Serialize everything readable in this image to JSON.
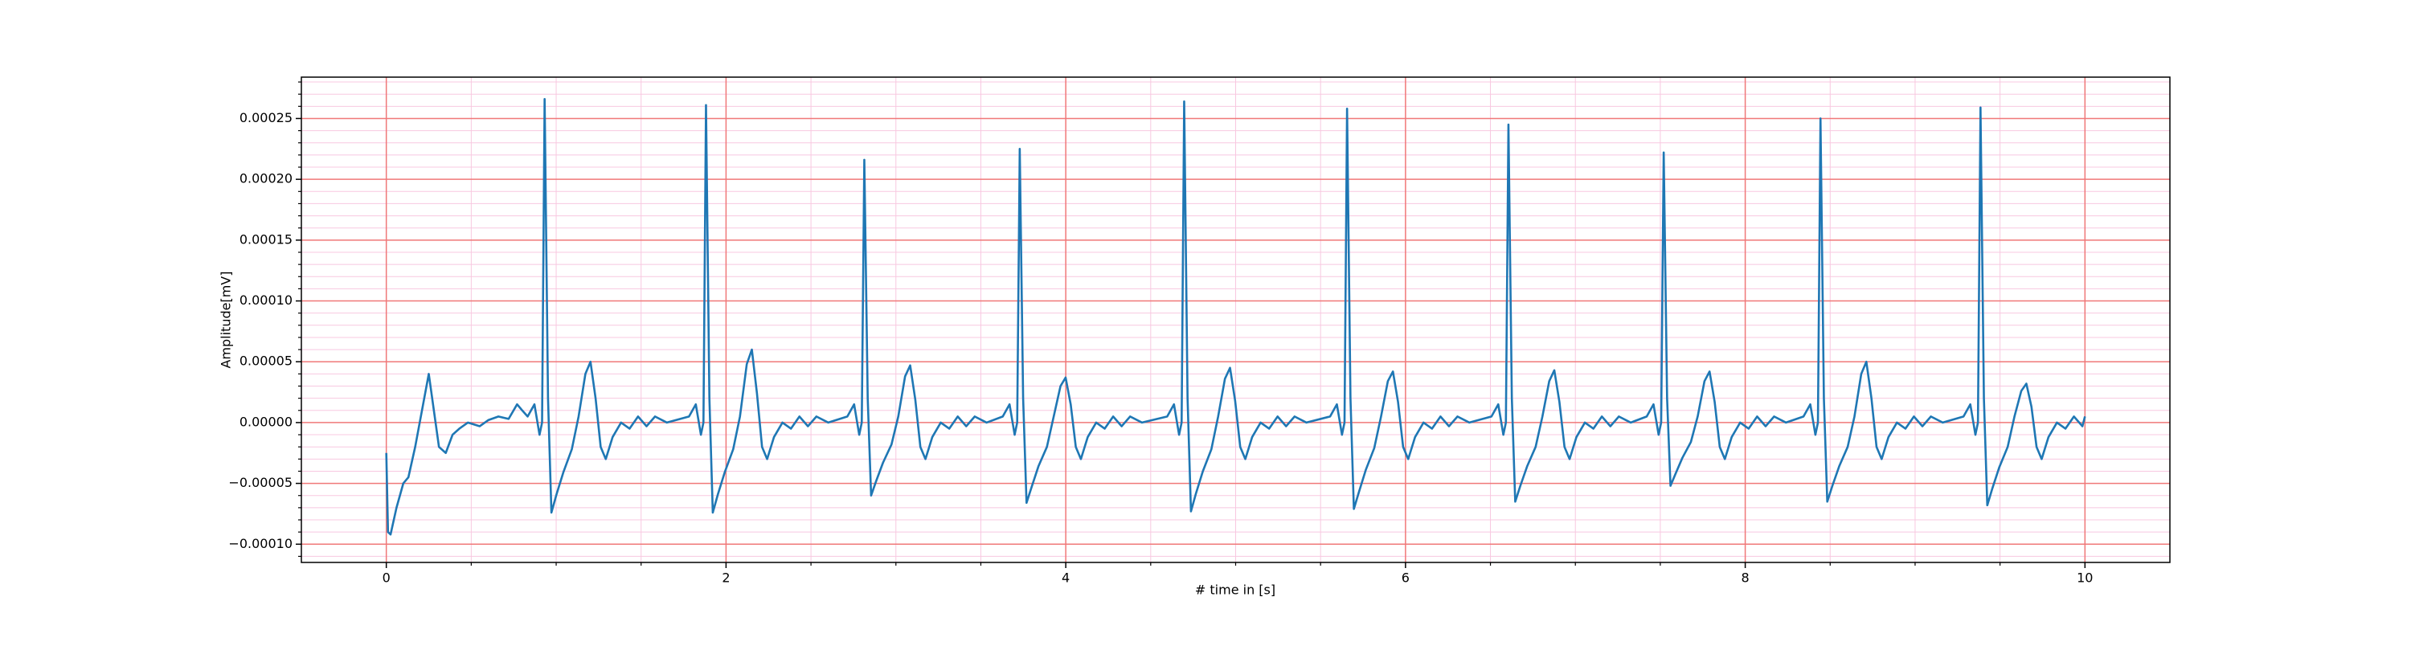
{
  "chart_data": {
    "type": "line",
    "xlabel": "# time in [s]",
    "ylabel": "Amplitude[mV]",
    "xlim": [
      -0.5,
      10.5
    ],
    "ylim": [
      -0.000115,
      0.000284
    ],
    "xticks": [
      0,
      2,
      4,
      6,
      8,
      10
    ],
    "yticks": [
      {
        "value": -0.0001,
        "label": "−0.00010"
      },
      {
        "value": -5e-05,
        "label": "−0.00005"
      },
      {
        "value": 0,
        "label": "0.00000"
      },
      {
        "value": 5e-05,
        "label": "0.00005"
      },
      {
        "value": 0.0001,
        "label": "0.00010"
      },
      {
        "value": 0.00015,
        "label": "0.00015"
      },
      {
        "value": 0.0002,
        "label": "0.00020"
      },
      {
        "value": 0.00025,
        "label": "0.00025"
      }
    ],
    "xminorticks": [
      0.5,
      1,
      1.5,
      2.5,
      3,
      3.5,
      4.5,
      5,
      5.5,
      6.5,
      7,
      7.5,
      8.5,
      9,
      9.5
    ],
    "yminorticks": [
      -0.00011,
      -9e-05,
      -8e-05,
      -7e-05,
      -6e-05,
      -4e-05,
      -3e-05,
      -2e-05,
      -1e-05,
      1e-05,
      2e-05,
      3e-05,
      4e-05,
      6e-05,
      7e-05,
      8e-05,
      9e-05,
      0.00011,
      0.00012,
      0.00013,
      0.00014,
      0.00016,
      0.00017,
      0.00018,
      0.00019,
      0.00021,
      0.00022,
      0.00023,
      0.00024,
      0.00026,
      0.00027,
      0.00028
    ],
    "grid": true,
    "major_grid_color": "#f07878",
    "minor_grid_color": "#f8c8e0",
    "series": [
      {
        "color": "#1f77b4",
        "x": [
          0,
          0.01,
          0.025,
          0.06,
          0.1,
          0.13,
          0.17,
          0.21,
          0.25,
          0.28,
          0.31,
          0.35,
          0.39,
          0.43,
          0.48,
          0.55,
          0.6,
          0.66,
          0.72,
          0.77,
          0.8,
          0.832,
          0.872,
          0.902,
          0.917,
          0.932,
          0.952,
          0.972,
          1.002,
          1.042,
          1.092,
          1.132,
          1.172,
          1.202,
          1.232,
          1.262,
          1.292,
          1.332,
          1.382,
          1.432,
          1.482,
          1.532,
          1.582,
          1.652,
          1.782,
          1.822,
          1.852,
          1.867,
          1.882,
          1.902,
          1.922,
          1.952,
          1.992,
          2.042,
          2.082,
          2.122,
          2.152,
          2.182,
          2.212,
          2.242,
          2.282,
          2.332,
          2.382,
          2.432,
          2.482,
          2.532,
          2.602,
          2.714,
          2.754,
          2.784,
          2.799,
          2.814,
          2.834,
          2.854,
          2.884,
          2.924,
          2.974,
          3.014,
          3.054,
          3.084,
          3.114,
          3.144,
          3.174,
          3.214,
          3.264,
          3.314,
          3.364,
          3.414,
          3.464,
          3.534,
          3.629,
          3.669,
          3.699,
          3.714,
          3.729,
          3.749,
          3.769,
          3.799,
          3.839,
          3.889,
          3.929,
          3.969,
          3.999,
          4.029,
          4.059,
          4.089,
          4.129,
          4.179,
          4.229,
          4.279,
          4.329,
          4.379,
          4.449,
          4.597,
          4.637,
          4.667,
          4.682,
          4.697,
          4.717,
          4.737,
          4.767,
          4.807,
          4.857,
          4.897,
          4.937,
          4.967,
          4.997,
          5.027,
          5.057,
          5.097,
          5.147,
          5.197,
          5.247,
          5.297,
          5.347,
          5.417,
          5.556,
          5.596,
          5.626,
          5.641,
          5.656,
          5.676,
          5.696,
          5.726,
          5.766,
          5.816,
          5.856,
          5.896,
          5.926,
          5.956,
          5.986,
          6.016,
          6.056,
          6.106,
          6.156,
          6.206,
          6.256,
          6.306,
          6.376,
          6.506,
          6.546,
          6.576,
          6.591,
          6.606,
          6.626,
          6.646,
          6.676,
          6.716,
          6.766,
          6.806,
          6.846,
          6.876,
          6.906,
          6.936,
          6.966,
          7.006,
          7.056,
          7.106,
          7.156,
          7.206,
          7.256,
          7.326,
          7.42,
          7.46,
          7.49,
          7.505,
          7.52,
          7.54,
          7.56,
          7.59,
          7.63,
          7.68,
          7.72,
          7.76,
          7.79,
          7.82,
          7.85,
          7.88,
          7.92,
          7.97,
          8.02,
          8.07,
          8.12,
          8.17,
          8.24,
          8.343,
          8.383,
          8.413,
          8.428,
          8.443,
          8.463,
          8.483,
          8.513,
          8.553,
          8.603,
          8.643,
          8.683,
          8.713,
          8.743,
          8.773,
          8.803,
          8.843,
          8.893,
          8.943,
          8.993,
          9.043,
          9.093,
          9.163,
          9.285,
          9.325,
          9.355,
          9.37,
          9.385,
          9.405,
          9.425,
          9.455,
          9.495,
          9.545,
          9.585,
          9.625,
          9.655,
          9.685,
          9.715,
          9.745,
          9.785,
          9.835,
          9.885,
          9.935,
          9.985,
          10.0
        ],
        "values": [
          -2.5e-05,
          -9e-05,
          -9.2e-05,
          -7e-05,
          -5e-05,
          -4.5e-05,
          -2e-05,
          1e-05,
          4e-05,
          1e-05,
          -2e-05,
          -2.5e-05,
          -1e-05,
          -5e-06,
          0,
          -3e-06,
          2e-06,
          5e-06,
          3e-06,
          1.5e-05,
          1e-05,
          5e-06,
          1.5e-05,
          -1e-05,
          0,
          0.000266,
          2e-05,
          -7.4e-05,
          -5.9e-05,
          -4.1e-05,
          -2.2e-05,
          5e-06,
          4e-05,
          5e-05,
          2e-05,
          -2e-05,
          -3e-05,
          -1.2e-05,
          0,
          -5e-06,
          5e-06,
          -3e-06,
          5e-06,
          0,
          5e-06,
          1.5e-05,
          -1e-05,
          0,
          0.000261,
          2e-05,
          -7.4e-05,
          -5.9e-05,
          -4.1e-05,
          -2.2e-05,
          5e-06,
          4.8e-05,
          6e-05,
          2.4e-05,
          -2e-05,
          -3e-05,
          -1.2e-05,
          0,
          -5e-06,
          5e-06,
          -3e-06,
          5e-06,
          0,
          5e-06,
          1.5e-05,
          -1e-05,
          0,
          0.000216,
          2e-05,
          -6e-05,
          -4.8e-05,
          -3.3e-05,
          -1.8e-05,
          5e-06,
          3.8e-05,
          4.7e-05,
          1.9e-05,
          -2e-05,
          -3e-05,
          -1.2e-05,
          0,
          -5e-06,
          5e-06,
          -3e-06,
          5e-06,
          0,
          5e-06,
          1.5e-05,
          -1e-05,
          0,
          0.000225,
          2e-05,
          -6.6e-05,
          -5.3e-05,
          -3.6e-05,
          -2e-05,
          5e-06,
          3e-05,
          3.7e-05,
          1.5e-05,
          -2e-05,
          -3e-05,
          -1.2e-05,
          0,
          -5e-06,
          5e-06,
          -3e-06,
          5e-06,
          0,
          5e-06,
          1.5e-05,
          -1e-05,
          0,
          0.000264,
          2e-05,
          -7.3e-05,
          -5.8e-05,
          -4e-05,
          -2.2e-05,
          5e-06,
          3.6e-05,
          4.5e-05,
          1.8e-05,
          -2e-05,
          -3e-05,
          -1.2e-05,
          0,
          -5e-06,
          5e-06,
          -3e-06,
          5e-06,
          0,
          5e-06,
          1.5e-05,
          -1e-05,
          0,
          0.000258,
          2e-05,
          -7.1e-05,
          -5.7e-05,
          -3.9e-05,
          -2.1e-05,
          5e-06,
          3.4e-05,
          4.2e-05,
          1.7e-05,
          -2e-05,
          -3e-05,
          -1.2e-05,
          0,
          -5e-06,
          5e-06,
          -3e-06,
          5e-06,
          0,
          5e-06,
          1.5e-05,
          -1e-05,
          0,
          0.000245,
          2e-05,
          -6.5e-05,
          -5.2e-05,
          -3.6e-05,
          -2e-05,
          5e-06,
          3.4e-05,
          4.3e-05,
          1.7e-05,
          -2e-05,
          -3e-05,
          -1.2e-05,
          0,
          -5e-06,
          5e-06,
          -3e-06,
          5e-06,
          0,
          5e-06,
          1.5e-05,
          -1e-05,
          0,
          0.000222,
          2e-05,
          -5.2e-05,
          -4.2e-05,
          -2.9e-05,
          -1.6e-05,
          5e-06,
          3.4e-05,
          4.2e-05,
          1.7e-05,
          -2e-05,
          -3e-05,
          -1.2e-05,
          0,
          -5e-06,
          5e-06,
          -3e-06,
          5e-06,
          0,
          5e-06,
          1.5e-05,
          -1e-05,
          0,
          0.00025,
          2e-05,
          -6.5e-05,
          -5.2e-05,
          -3.6e-05,
          -2e-05,
          5e-06,
          4e-05,
          5e-05,
          2e-05,
          -2e-05,
          -3e-05,
          -1.2e-05,
          0,
          -5e-06,
          5e-06,
          -3e-06,
          5e-06,
          0,
          5e-06,
          1.5e-05,
          -1e-05,
          0,
          0.000259,
          2e-05,
          -6.8e-05,
          -5.4e-05,
          -3.7e-05,
          -2e-05,
          5e-06,
          2.6e-05,
          3.2e-05,
          1.3e-05,
          -2e-05,
          -3e-05,
          -1.2e-05,
          0,
          -5e-06,
          5e-06,
          -3e-06,
          5e-06
        ]
      }
    ]
  }
}
